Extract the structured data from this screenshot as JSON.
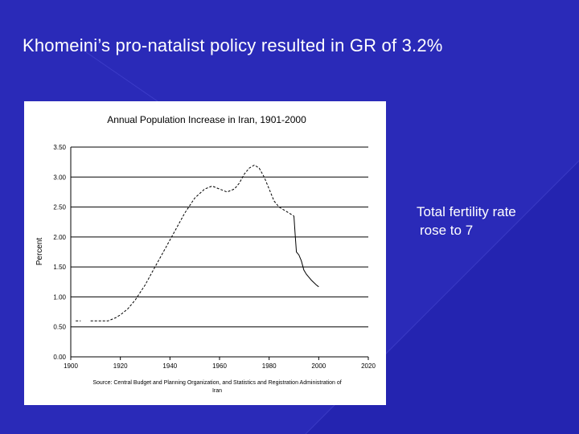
{
  "slide": {
    "title": "Khomeini’s pro-natalist policy resulted in GR of 3.2%",
    "note_line1": "Total fertility rate",
    "note_line2": "rose to 7"
  },
  "colors": {
    "background": "#2424b0",
    "panel": "#ffffff",
    "line": "#000000"
  },
  "chart_data": {
    "type": "line",
    "title": "Annual Population Increase in Iran, 1901-2000",
    "xlabel": "",
    "ylabel": "Percent",
    "xlim": [
      1900,
      2020
    ],
    "ylim": [
      0,
      3.5
    ],
    "xticks": [
      1900,
      1920,
      1940,
      1960,
      1980,
      2000,
      2020
    ],
    "xtick_labels": [
      "1900",
      "1920",
      "1940",
      "1960",
      "1980",
      "2000",
      "2020"
    ],
    "yticks": [
      0,
      0.5,
      1.0,
      1.5,
      2.0,
      2.5,
      3.0,
      3.5
    ],
    "ytick_labels": [
      "0.00",
      "0.50",
      "1.00",
      "1.50",
      "2.00",
      "2.50",
      "3.00",
      "3.50"
    ],
    "grid": "horizontal",
    "source_line1": "Source: Central Budget and Planning Organization, and Statistics and Registration Administration of",
    "source_line2": "Iran",
    "series": [
      {
        "style": "dashed",
        "x": [
          1902,
          1904
        ],
        "y": [
          0.6,
          0.6
        ]
      },
      {
        "style": "dashed",
        "x": [
          1908,
          1912,
          1915,
          1918,
          1920,
          1923,
          1926,
          1930,
          1934,
          1938,
          1942,
          1946,
          1950,
          1954,
          1957,
          1960,
          1963,
          1966,
          1968,
          1970,
          1972,
          1974,
          1976,
          1978,
          1980,
          1982,
          1984,
          1986,
          1988,
          1990
        ],
        "y": [
          0.6,
          0.6,
          0.6,
          0.65,
          0.7,
          0.8,
          0.95,
          1.2,
          1.5,
          1.8,
          2.1,
          2.4,
          2.65,
          2.8,
          2.85,
          2.8,
          2.75,
          2.8,
          2.9,
          3.05,
          3.15,
          3.2,
          3.15,
          3.0,
          2.8,
          2.6,
          2.5,
          2.45,
          2.4,
          2.35
        ]
      },
      {
        "style": "solid",
        "x": [
          1990,
          1990.5,
          1991,
          1992,
          1993,
          1994,
          1995,
          1996,
          1997,
          1998,
          1999,
          2000
        ],
        "y": [
          2.35,
          2.05,
          1.75,
          1.7,
          1.6,
          1.45,
          1.38,
          1.33,
          1.28,
          1.24,
          1.2,
          1.17
        ]
      }
    ]
  }
}
